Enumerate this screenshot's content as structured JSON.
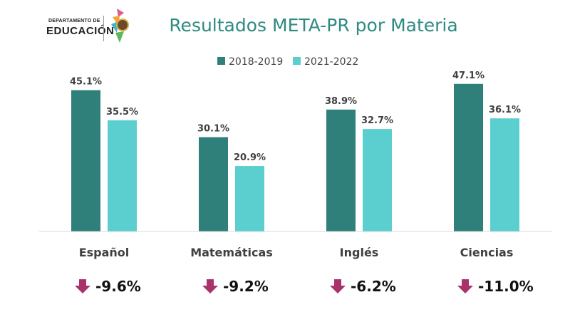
{
  "logo": {
    "line1": "DEPARTAMENTO DE",
    "line2": "EDUCACIÓN"
  },
  "chart_data": {
    "type": "bar",
    "title": "Resultados META-PR por Materia",
    "categories": [
      "Español",
      "Matemáticas",
      "Inglés",
      "Ciencias"
    ],
    "series": [
      {
        "name": "2018-2019",
        "values": [
          45.1,
          30.1,
          38.9,
          47.1
        ],
        "labels": [
          "45.1%",
          "30.1%",
          "38.9%",
          "47.1%"
        ],
        "color": "#2f7f7a"
      },
      {
        "name": "2021-2022",
        "values": [
          35.5,
          20.9,
          32.7,
          36.1
        ],
        "labels": [
          "35.5%",
          "20.9%",
          "32.7%",
          "36.1%"
        ],
        "color": "#5bcfcf"
      }
    ],
    "changes": [
      "-9.6%",
      "-9.2%",
      "-6.2%",
      "-11.0%"
    ],
    "change_icon": "down-arrow-icon",
    "change_color": "#a8336b",
    "title_color": "#2e8b82",
    "ylim": [
      0,
      50
    ],
    "grid": false,
    "legend": "top"
  }
}
